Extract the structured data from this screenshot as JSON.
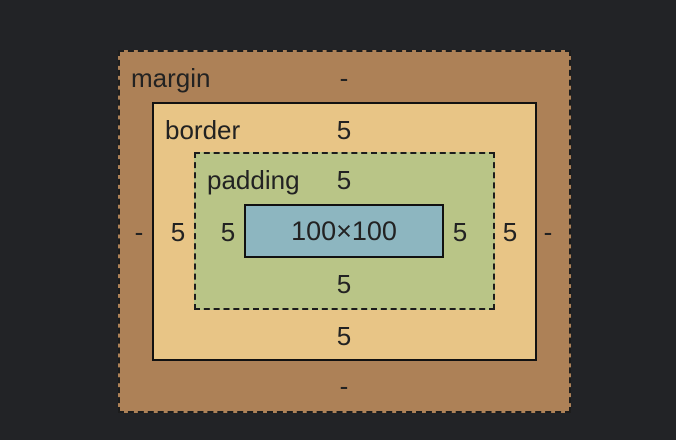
{
  "box_model": {
    "margin": {
      "label": "margin",
      "top": "-",
      "right": "-",
      "bottom": "-",
      "left": "-"
    },
    "border": {
      "label": "border",
      "top": "5",
      "right": "5",
      "bottom": "5",
      "left": "5"
    },
    "padding": {
      "label": "padding",
      "top": "5",
      "right": "5",
      "bottom": "5",
      "left": "5"
    },
    "content": {
      "size": "100×100"
    }
  },
  "colors": {
    "background": "#222326",
    "margin": "#ad8157",
    "border": "#e8c586",
    "padding": "#b9c587",
    "content": "#8db6c0"
  }
}
